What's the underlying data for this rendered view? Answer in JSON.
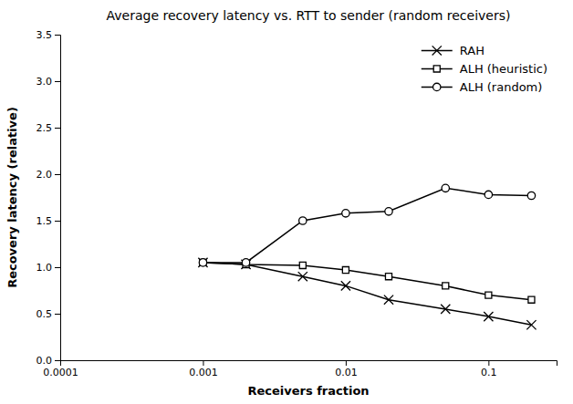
{
  "chart_data": {
    "type": "line",
    "title": "Average recovery latency vs. RTT to sender (random receivers)",
    "xlabel": "Receivers fraction",
    "ylabel": "Recovery latency (relative)",
    "log": "x",
    "grid": false,
    "legend": "upper right",
    "color": "#000000",
    "xlim": [
      0.0001,
      0.3
    ],
    "xticks": [
      0.0001,
      0.001,
      0.01,
      0.1
    ],
    "ylim": [
      0,
      3.5
    ],
    "yticks": [
      {
        "value": 0,
        "label": "0.0"
      },
      0.5,
      {
        "value": 1.0,
        "label": "1.0"
      },
      1.5,
      {
        "value": 2.0,
        "label": "2.0"
      },
      2.5,
      {
        "value": 3.0,
        "label": "3.0"
      },
      3.5
    ],
    "x": [
      0.001,
      0.002,
      0.005,
      0.01,
      0.02,
      0.05,
      0.1,
      0.2
    ],
    "series": [
      {
        "name": "RAH",
        "marker": "x",
        "values": [
          1.05,
          1.03,
          0.9,
          0.8,
          0.65,
          0.55,
          0.47,
          0.38
        ]
      },
      {
        "name": "ALH (heuristic)",
        "marker": "square",
        "values": [
          1.05,
          1.03,
          1.02,
          0.97,
          0.9,
          0.8,
          0.7,
          0.65
        ]
      },
      {
        "name": "ALH (random)",
        "marker": "circle",
        "values": [
          1.05,
          1.05,
          1.5,
          1.58,
          1.6,
          1.85,
          1.78,
          1.77
        ]
      }
    ]
  }
}
